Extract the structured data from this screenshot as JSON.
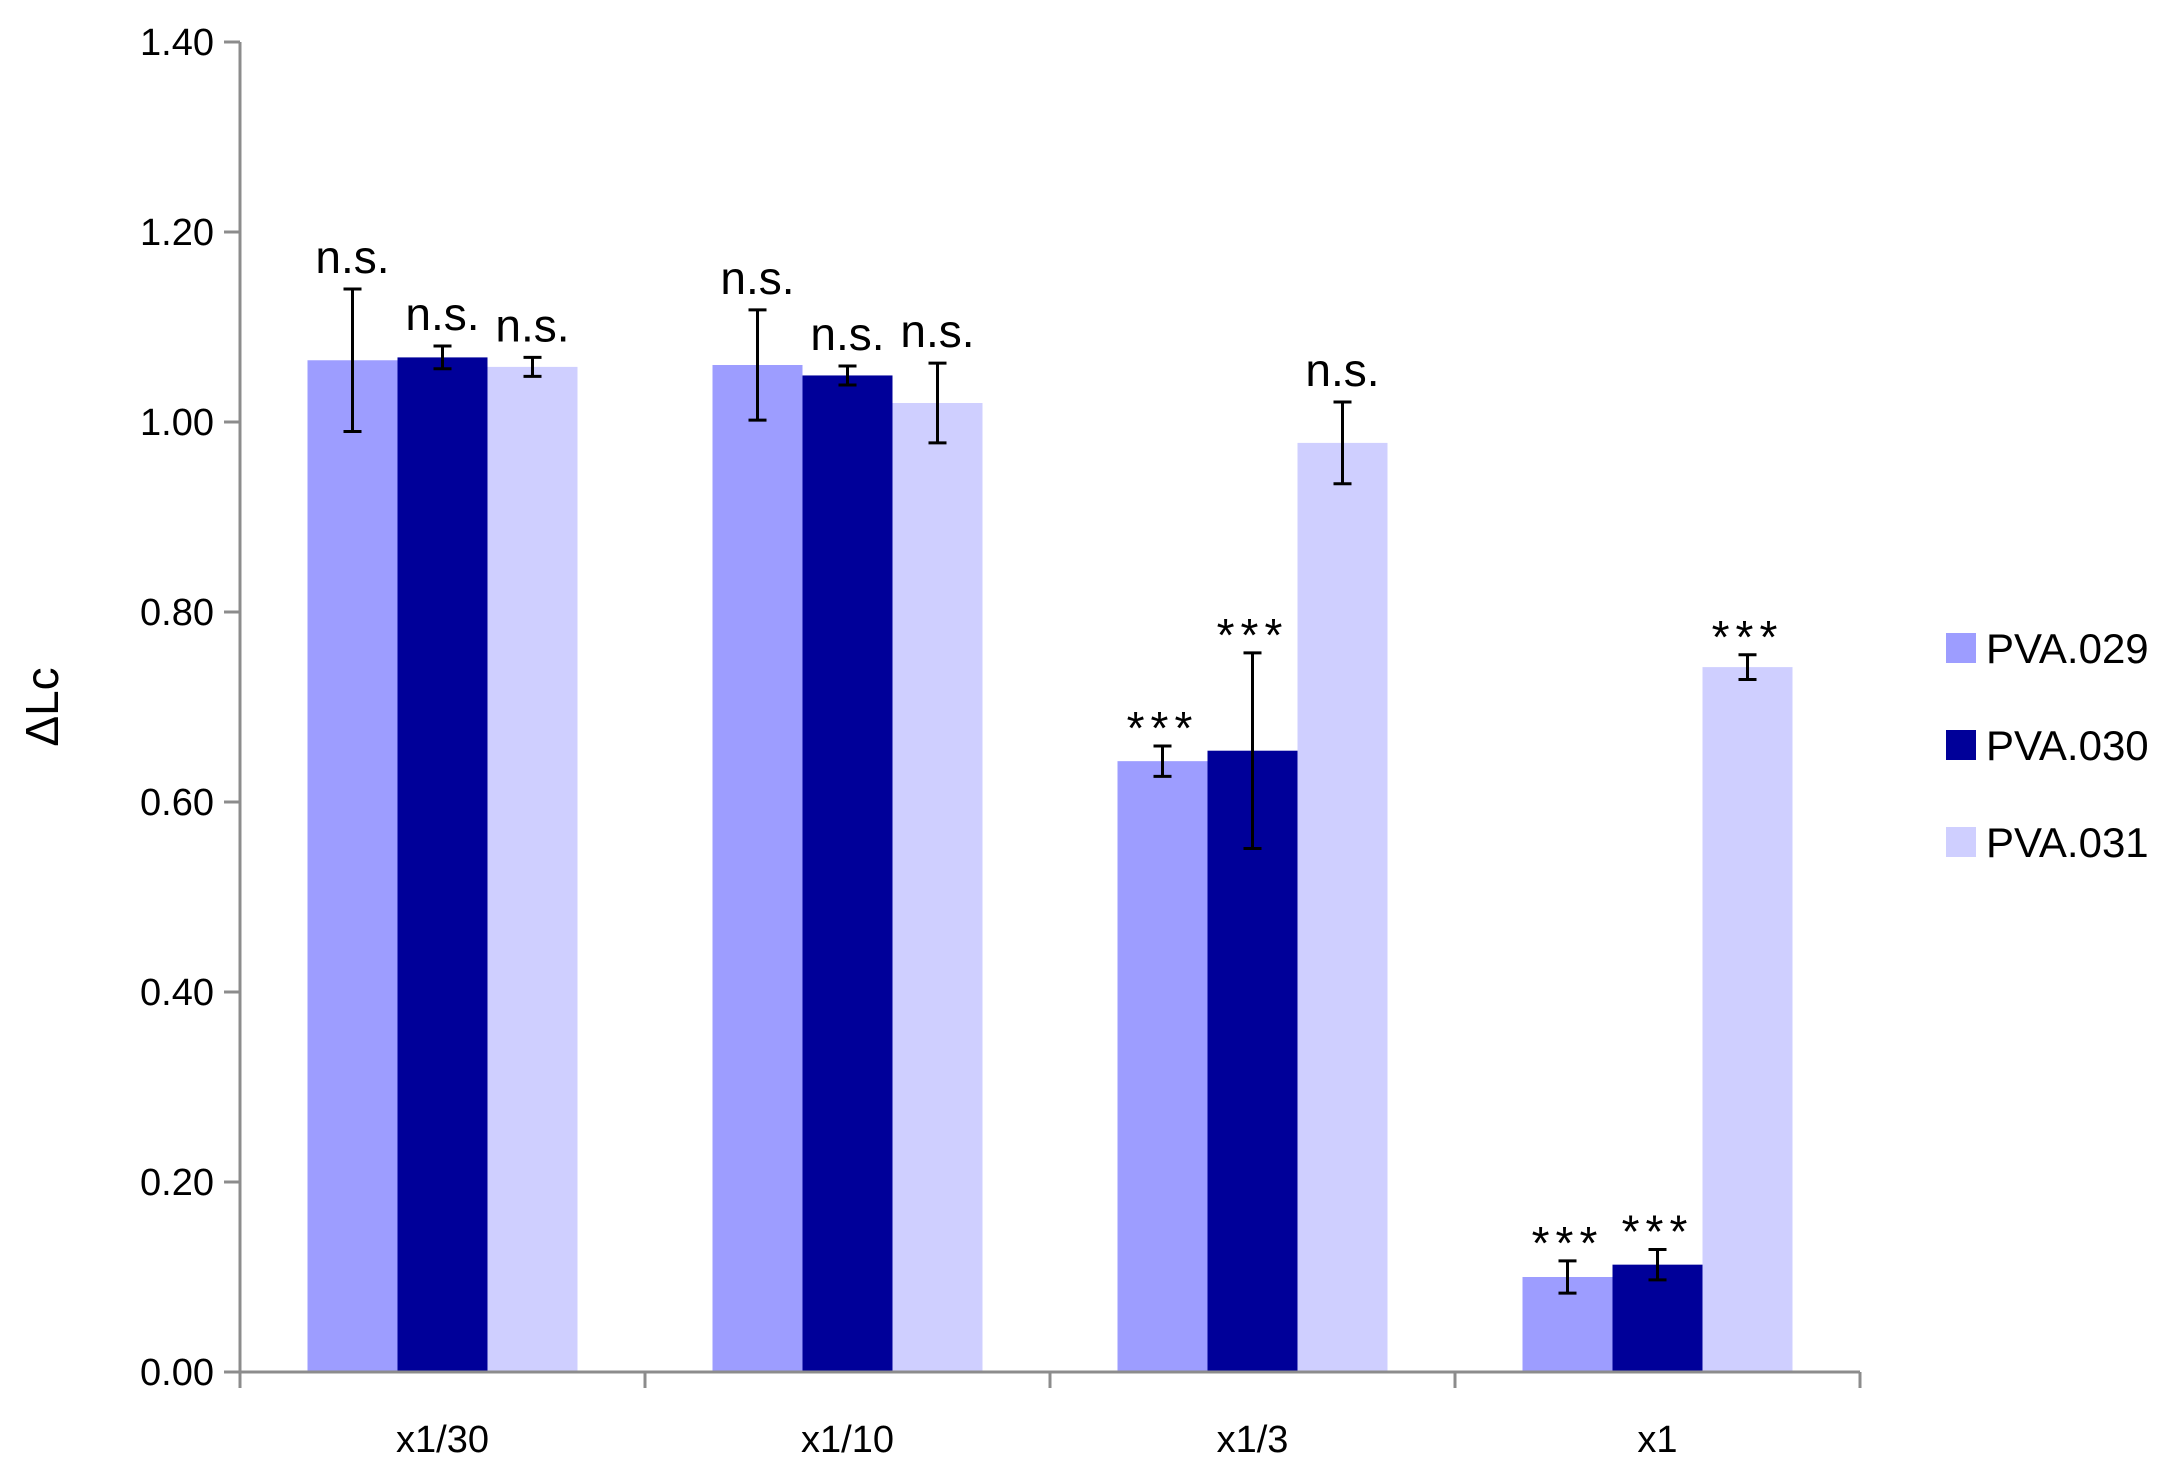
{
  "chart_data": {
    "type": "bar",
    "title": "",
    "xlabel": "",
    "ylabel": "ΔLc",
    "ylim": [
      0,
      1.4
    ],
    "yticks": [
      "0.00",
      "0.20",
      "0.40",
      "0.60",
      "0.80",
      "1.00",
      "1.20",
      "1.40"
    ],
    "ytick_values": [
      0,
      0.2,
      0.4,
      0.6,
      0.8,
      1.0,
      1.2,
      1.4
    ],
    "categories": [
      "x1/30",
      "x1/10",
      "x1/3",
      "x1"
    ],
    "grid": false,
    "legend_position": "right",
    "series": [
      {
        "name": "PVA.029",
        "color": "#9d9dff",
        "values": [
          1.065,
          1.06,
          0.643,
          0.1
        ],
        "errors": [
          0.075,
          0.058,
          0.016,
          0.017
        ],
        "annotations": [
          "n.s.",
          "n.s.",
          "***",
          "***"
        ]
      },
      {
        "name": "PVA.030",
        "color": "#000099",
        "values": [
          1.068,
          1.049,
          0.654,
          0.113
        ],
        "errors": [
          0.012,
          0.01,
          0.103,
          0.016
        ],
        "annotations": [
          "n.s.",
          "n.s.",
          "***",
          "***"
        ]
      },
      {
        "name": "PVA.031",
        "color": "#cfcfff",
        "values": [
          1.058,
          1.02,
          0.978,
          0.742
        ],
        "errors": [
          0.01,
          0.042,
          0.043,
          0.013
        ],
        "annotations": [
          "n.s.",
          "n.s.",
          "n.s.",
          "***"
        ]
      }
    ]
  }
}
